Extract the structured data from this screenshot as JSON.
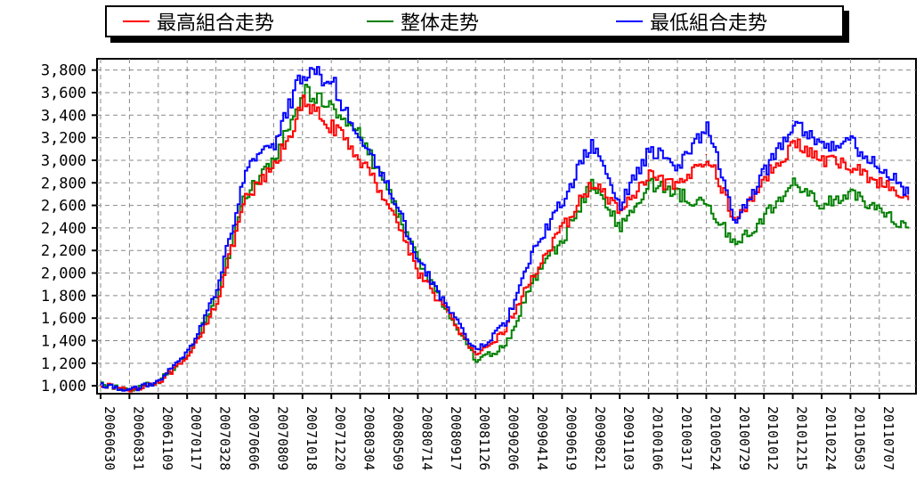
{
  "chart_data": {
    "type": "line",
    "title": "",
    "xlabel": "",
    "ylabel": "",
    "ylim": [
      930,
      3900
    ],
    "grid": true,
    "legend_position": "top",
    "y_ticks": [
      "1,000",
      "1,200",
      "1,400",
      "1,600",
      "1,800",
      "2,000",
      "2,200",
      "2,400",
      "2,600",
      "2,800",
      "3,000",
      "3,200",
      "3,400",
      "3,600",
      "3,800"
    ],
    "y_tick_values": [
      1000,
      1200,
      1400,
      1600,
      1800,
      2000,
      2200,
      2400,
      2600,
      2800,
      3000,
      3200,
      3400,
      3600,
      3800
    ],
    "x_ticks": [
      "20060630",
      "20060831",
      "20061109",
      "20070117",
      "20070328",
      "20070606",
      "20070809",
      "20071018",
      "20071220",
      "20080304",
      "20080509",
      "20080714",
      "20080917",
      "20081126",
      "20090206",
      "20090414",
      "20090619",
      "20090821",
      "20091103",
      "20100106",
      "20100317",
      "20100524",
      "20100729",
      "20101012",
      "20101215",
      "20110224",
      "20110503",
      "20110707"
    ],
    "x": [
      "20060630",
      "20060831",
      "20061109",
      "20070117",
      "20070328",
      "20070606",
      "20070809",
      "20071018",
      "20071220",
      "20080304",
      "20080509",
      "20080714",
      "20080917",
      "20081126",
      "20090206",
      "20090414",
      "20090619",
      "20090821",
      "20091103",
      "20100106",
      "20100317",
      "20100524",
      "20100729",
      "20101012",
      "20101215",
      "20110224",
      "20110503",
      "20110707",
      "20110830"
    ],
    "series": [
      {
        "name": "最高組合走势",
        "color": "#ff0000",
        "values": [
          1010,
          960,
          1040,
          1240,
          1750,
          2650,
          2950,
          3500,
          3300,
          3000,
          2600,
          2000,
          1650,
          1250,
          1500,
          2000,
          2400,
          2800,
          2550,
          2850,
          2750,
          3050,
          2450,
          2850,
          3150,
          3000,
          2950,
          2800,
          2650
        ]
      },
      {
        "name": "整体走势",
        "color": "#008000",
        "values": [
          1010,
          960,
          1040,
          1280,
          1800,
          2700,
          3000,
          3600,
          3500,
          3200,
          2700,
          2100,
          1650,
          1220,
          1350,
          1950,
          2300,
          2800,
          2400,
          2800,
          2700,
          2600,
          2250,
          2500,
          2800,
          2600,
          2700,
          2550,
          2400
        ]
      },
      {
        "name": "最低組合走势",
        "color": "#0000ff",
        "values": [
          1010,
          960,
          1040,
          1300,
          1850,
          2900,
          3150,
          3800,
          3700,
          3150,
          2750,
          2100,
          1700,
          1300,
          1550,
          2200,
          2650,
          3150,
          2600,
          3100,
          2950,
          3300,
          2450,
          2900,
          3350,
          3150,
          3150,
          2950,
          2700
        ]
      }
    ]
  }
}
